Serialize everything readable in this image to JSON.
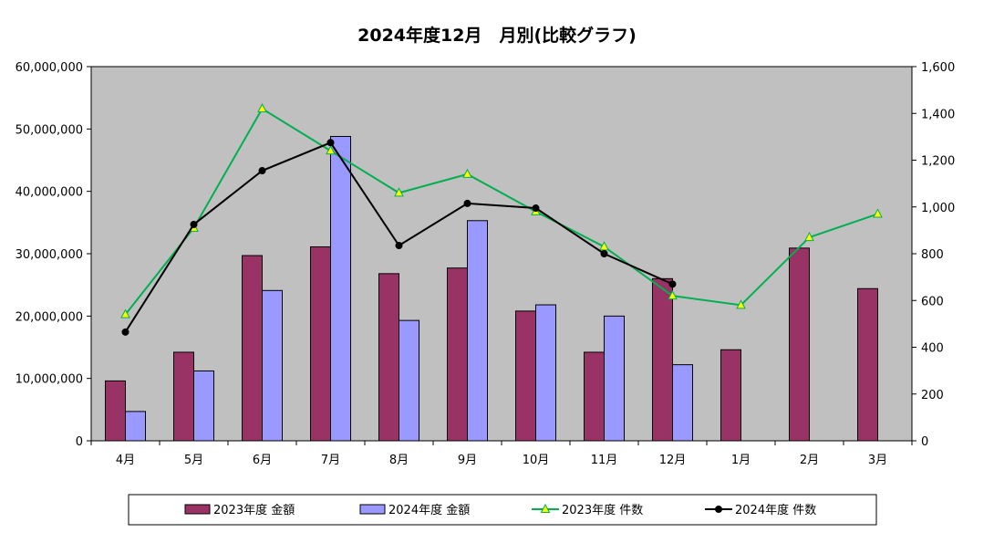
{
  "chart_data": {
    "type": "bar",
    "title": "2024年度12月　月別(比較グラフ)",
    "categories": [
      "4月",
      "5月",
      "6月",
      "7月",
      "8月",
      "9月",
      "10月",
      "11月",
      "12月",
      "1月",
      "2月",
      "3月"
    ],
    "y_left": {
      "ylim": [
        0,
        60000000
      ],
      "ticks": [
        0,
        10000000,
        20000000,
        30000000,
        40000000,
        50000000,
        60000000
      ],
      "tick_labels": [
        "0",
        "10,000,000",
        "20,000,000",
        "30,000,000",
        "40,000,000",
        "50,000,000",
        "60,000,000"
      ]
    },
    "y_right": {
      "ylim": [
        0,
        1600
      ],
      "ticks": [
        0,
        200,
        400,
        600,
        800,
        1000,
        1200,
        1400,
        1600
      ],
      "tick_labels": [
        "0",
        "200",
        "400",
        "600",
        "800",
        "1,000",
        "1,200",
        "1,400",
        "1,600"
      ]
    },
    "series": [
      {
        "name": "2023年度 金額",
        "type": "bar",
        "axis": "left",
        "color": "#993366",
        "values": [
          9600000,
          14200000,
          29700000,
          31100000,
          26800000,
          27700000,
          20800000,
          14200000,
          26000000,
          14600000,
          30900000,
          24400000
        ]
      },
      {
        "name": "2024年度 金額",
        "type": "bar",
        "axis": "left",
        "color": "#9999ff",
        "values": [
          4700000,
          11200000,
          24100000,
          48800000,
          19300000,
          35300000,
          21800000,
          20000000,
          12200000,
          null,
          null,
          null
        ]
      },
      {
        "name": "2023年度 件数",
        "type": "line",
        "axis": "right",
        "color": "#00b050",
        "marker": "triangle",
        "marker_color": "#ffff00",
        "values": [
          540,
          910,
          1420,
          1240,
          1060,
          1140,
          980,
          830,
          620,
          580,
          870,
          970
        ]
      },
      {
        "name": "2024年度 件数",
        "type": "line",
        "axis": "right",
        "color": "#000000",
        "marker": "circle",
        "marker_color": "#000000",
        "values": [
          465,
          925,
          1155,
          1275,
          835,
          1015,
          995,
          800,
          670,
          null,
          null,
          null
        ]
      }
    ],
    "plot_background": "#c0c0c0",
    "grid": false,
    "legend_position": "bottom"
  }
}
